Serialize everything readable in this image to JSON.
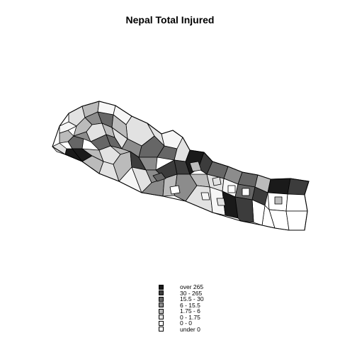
{
  "title": "Nepal Total Injured",
  "legend": {
    "items": [
      {
        "label": "over 265",
        "color": "#1a1a1a"
      },
      {
        "label": "30 - 265",
        "color": "#3c3c3c"
      },
      {
        "label": "15.5 - 30",
        "color": "#666666"
      },
      {
        "label": "6 - 15.5",
        "color": "#8c8c8c"
      },
      {
        "label": "1.75 - 6",
        "color": "#bbbbbb"
      },
      {
        "label": "0 - 1.75",
        "color": "#e2e2e2"
      },
      {
        "label": "0 - 0",
        "color": "#f6f6f6"
      },
      {
        "label": "under 0",
        "color": "#ffffff"
      }
    ]
  },
  "districts": [
    {
      "cls": 5
    },
    {
      "cls": 4
    },
    {
      "cls": 6
    },
    {
      "cls": 5
    },
    {
      "cls": 4
    },
    {
      "cls": 6
    },
    {
      "cls": 6
    },
    {
      "cls": 5
    },
    {
      "cls": 4
    },
    {
      "cls": 3
    },
    {
      "cls": 2
    },
    {
      "cls": 4
    },
    {
      "cls": 2
    },
    {
      "cls": 0
    },
    {
      "cls": 0
    },
    {
      "cls": 3
    },
    {
      "cls": 5
    },
    {
      "cls": 4
    },
    {
      "cls": 5
    },
    {
      "cls": 2
    },
    {
      "cls": 2
    },
    {
      "cls": 4
    },
    {
      "cls": 5
    },
    {
      "cls": 4
    },
    {
      "cls": 5
    },
    {
      "cls": 6
    },
    {
      "cls": 3
    },
    {
      "cls": 2
    },
    {
      "cls": 4
    },
    {
      "cls": 5
    },
    {
      "cls": 4
    },
    {
      "cls": 1
    },
    {
      "cls": 3
    },
    {
      "cls": 2
    },
    {
      "cls": 5
    },
    {
      "cls": 6
    },
    {
      "cls": 5
    },
    {
      "cls": 3
    },
    {
      "cls": 1
    },
    {
      "cls": 1
    },
    {
      "cls": 0
    },
    {
      "cls": 1
    },
    {
      "cls": 2
    },
    {
      "cls": 3
    },
    {
      "cls": 2
    },
    {
      "cls": 4
    },
    {
      "cls": 3
    },
    {
      "cls": 4
    },
    {
      "cls": 5
    },
    {
      "cls": 6
    },
    {
      "cls": 2
    },
    {
      "cls": 1
    },
    {
      "cls": 0
    },
    {
      "cls": 1
    },
    {
      "cls": 3
    },
    {
      "cls": 4
    },
    {
      "cls": 5
    },
    {
      "cls": 6
    },
    {
      "cls": 7
    },
    {
      "cls": 7
    },
    {
      "cls": 7
    },
    {
      "cls": 7
    },
    {
      "cls": 7
    },
    {
      "cls": 7
    },
    {
      "cls": 0
    },
    {
      "cls": 1
    },
    {
      "cls": 2
    },
    {
      "cls": 4
    },
    {
      "cls": 5
    },
    {
      "cls": 7
    },
    {
      "cls": 7
    },
    {
      "cls": 7
    },
    {
      "cls": 6
    },
    {
      "cls": 5
    },
    {
      "cls": 4
    }
  ]
}
